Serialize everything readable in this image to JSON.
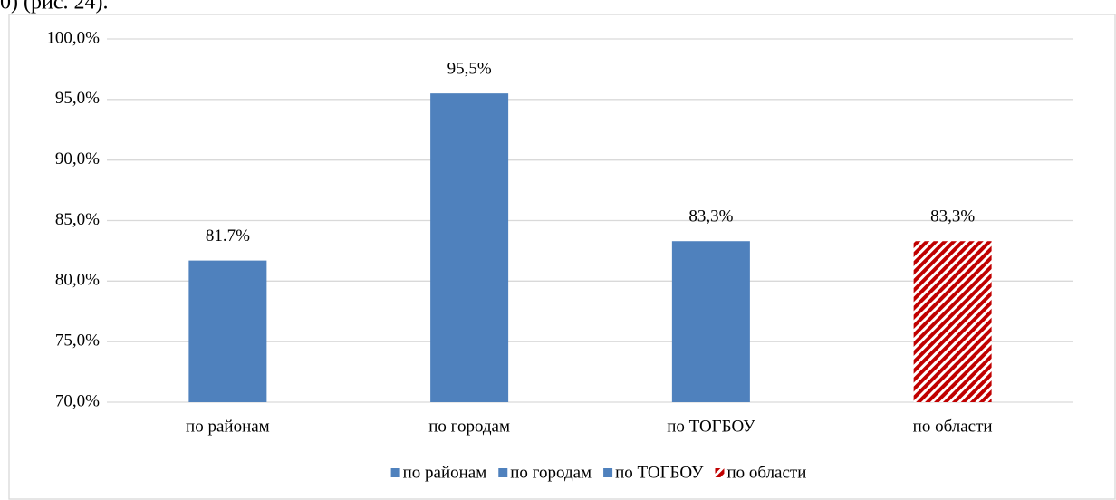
{
  "page_text": "0) (рис. 24).",
  "chart_data": {
    "type": "bar",
    "categories": [
      "по районам",
      "по городам",
      "по ТОГБОУ",
      "по области"
    ],
    "values": [
      81.7,
      95.5,
      83.3,
      83.3
    ],
    "value_labels": [
      "81.7%",
      "95,5%",
      "83,3%",
      "83,3%"
    ],
    "colors": [
      "#4f81bd",
      "#4f81bd",
      "#4f81bd",
      "#c00000"
    ],
    "hatched": [
      false,
      false,
      false,
      true
    ],
    "ylim": [
      70,
      100
    ],
    "yticks": [
      {
        "value": 70,
        "label": "70,0%"
      },
      {
        "value": 75,
        "label": "75,0%"
      },
      {
        "value": 80,
        "label": "80,0%"
      },
      {
        "value": 85,
        "label": "85,0%"
      },
      {
        "value": 90,
        "label": "90,0%"
      },
      {
        "value": 95,
        "label": "95,0%"
      },
      {
        "value": 100,
        "label": "100,0%"
      }
    ],
    "grid": true,
    "legend": "bottom"
  }
}
